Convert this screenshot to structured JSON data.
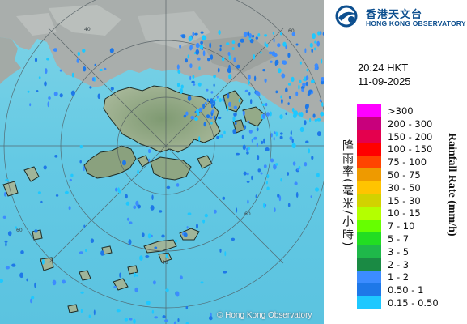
{
  "logo": {
    "chinese": "香港天文台",
    "english": "HONG KONG OBSERVATORY",
    "icon": "hko-logo-icon"
  },
  "timestamp": {
    "time": "20:24 HKT",
    "date": "11-09-2025"
  },
  "legend": {
    "title_chinese": "降雨率(毫米/小時)",
    "title_english": "Rainfall Rate (mm/h)",
    "items": [
      {
        "label": ">300",
        "color": "#ff00ff"
      },
      {
        "label": "200 - 300",
        "color": "#c8007c"
      },
      {
        "label": "150 - 200",
        "color": "#e4004e"
      },
      {
        "label": "100 - 150",
        "color": "#ff0000"
      },
      {
        "label": "75 - 100",
        "color": "#ff4400"
      },
      {
        "label": "50 - 75",
        "color": "#ee9a00"
      },
      {
        "label": "30 - 50",
        "color": "#ffc400"
      },
      {
        "label": "15 - 30",
        "color": "#d2d200"
      },
      {
        "label": "10 - 15",
        "color": "#b4ff00"
      },
      {
        "label": "7 - 10",
        "color": "#66ff00"
      },
      {
        "label": "5 - 7",
        "color": "#22dd22"
      },
      {
        "label": "3 - 5",
        "color": "#1fb84a"
      },
      {
        "label": "2 - 3",
        "color": "#1a8a44"
      },
      {
        "label": "1 - 2",
        "color": "#3c8cff"
      },
      {
        "label": "0.50 - 1",
        "color": "#1e78e8"
      },
      {
        "label": "0.15 - 0.50",
        "color": "#1ec8ff"
      }
    ]
  },
  "map": {
    "credit": "© Hong Kong Observatory",
    "range_ring_labels": [
      "40",
      "60",
      "60",
      "60",
      "40"
    ]
  }
}
